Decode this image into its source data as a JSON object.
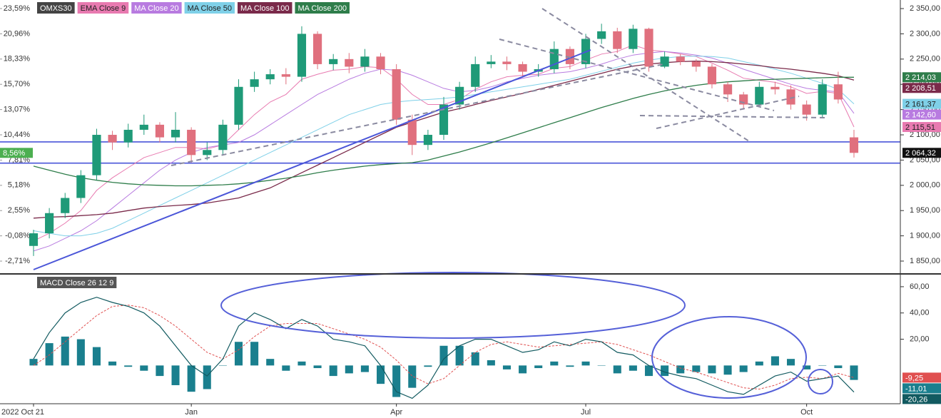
{
  "chart_data": [
    {
      "type": "candlestick",
      "name": "OMXS30",
      "categories": [
        "2022 Oct 21",
        null,
        null,
        null,
        null,
        null,
        null,
        null,
        null,
        null,
        "Jan",
        null,
        null,
        null,
        null,
        null,
        null,
        null,
        null,
        null,
        null,
        null,
        null,
        "Apr",
        null,
        null,
        null,
        null,
        null,
        null,
        null,
        null,
        null,
        null,
        null,
        "Jul",
        null,
        null,
        null,
        null,
        null,
        null,
        null,
        null,
        null,
        null,
        null,
        null,
        null,
        "Oct",
        null,
        null,
        null
      ],
      "open": [
        1880,
        1905,
        1945,
        1975,
        2020,
        2100,
        2085,
        2110,
        2120,
        2095,
        2110,
        2060,
        2070,
        2120,
        2195,
        2210,
        2220,
        2215,
        2300,
        2240,
        2250,
        2235,
        2255,
        2230,
        2130,
        2080,
        2100,
        2160,
        2195,
        2240,
        2245,
        2240,
        2225,
        2230,
        2270,
        2240,
        2290,
        2305,
        2270,
        2310,
        2235,
        2255,
        2245,
        2235,
        2200,
        2180,
        2160,
        2195,
        2190,
        2160,
        2140,
        2200,
        2095
      ],
      "high": [
        1912,
        1955,
        1985,
        2030,
        2112,
        2108,
        2122,
        2140,
        2125,
        2145,
        2115,
        2085,
        2130,
        2210,
        2225,
        2230,
        2232,
        2315,
        2305,
        2260,
        2262,
        2270,
        2262,
        2240,
        2140,
        2110,
        2175,
        2205,
        2255,
        2258,
        2255,
        2245,
        2240,
        2285,
        2275,
        2300,
        2320,
        2312,
        2318,
        2312,
        2265,
        2260,
        2250,
        2240,
        2205,
        2185,
        2205,
        2205,
        2198,
        2168,
        2210,
        2225,
        2110
      ],
      "low": [
        1860,
        1895,
        1935,
        1965,
        2010,
        2070,
        2075,
        2100,
        2085,
        2085,
        2045,
        2050,
        2060,
        2110,
        2185,
        2200,
        2200,
        2205,
        2230,
        2228,
        2222,
        2225,
        2220,
        2120,
        2060,
        2070,
        2090,
        2150,
        2185,
        2232,
        2228,
        2215,
        2215,
        2222,
        2230,
        2232,
        2280,
        2262,
        2262,
        2225,
        2232,
        2238,
        2225,
        2192,
        2165,
        2150,
        2155,
        2180,
        2150,
        2128,
        2135,
        2162,
        2055
      ],
      "close": [
        1905,
        1945,
        1975,
        2020,
        2100,
        2085,
        2110,
        2120,
        2095,
        2110,
        2060,
        2070,
        2120,
        2195,
        2210,
        2220,
        2215,
        2300,
        2240,
        2250,
        2235,
        2255,
        2230,
        2130,
        2080,
        2100,
        2160,
        2195,
        2240,
        2245,
        2240,
        2225,
        2230,
        2270,
        2240,
        2290,
        2305,
        2270,
        2310,
        2235,
        2255,
        2245,
        2235,
        2200,
        2180,
        2160,
        2195,
        2190,
        2160,
        2140,
        2200,
        2170,
        2064.32
      ],
      "close_label": "2 064,32",
      "up_color": "#1f9a78",
      "down_color": "#e0707e",
      "name_color": "#444444",
      "ylim": [
        1826,
        2367
      ],
      "yticks": [
        {
          "value": 2350,
          "label": "2 350,00"
        },
        {
          "value": 2300,
          "label": "2 300,00"
        },
        {
          "value": 2250,
          "label": "2 250,00"
        },
        {
          "value": 2200,
          "label": "2 200,00"
        },
        {
          "value": 2150,
          "label": "2 150,00"
        },
        {
          "value": 2100,
          "label": "2 100,00"
        },
        {
          "value": 2050,
          "label": "2 050,00"
        },
        {
          "value": 2000,
          "label": "2 000,00"
        },
        {
          "value": 1950,
          "label": "1 950,00"
        },
        {
          "value": 1900,
          "label": "1 900,00"
        },
        {
          "value": 1850,
          "label": "1 850,00"
        }
      ],
      "y2lim": [
        -3.97,
        24.48
      ],
      "y2ticks": [
        {
          "value": 23.59,
          "label": "23,59%"
        },
        {
          "value": 20.96,
          "label": "20,96%"
        },
        {
          "value": 18.33,
          "label": "18,33%"
        },
        {
          "value": 15.7,
          "label": "15,70%"
        },
        {
          "value": 13.07,
          "label": "13,07%"
        },
        {
          "value": 10.44,
          "label": "10,44%"
        },
        {
          "value": 7.81,
          "label": "7,81%"
        },
        {
          "value": 5.18,
          "label": "5,18%"
        },
        {
          "value": 2.55,
          "label": "2,55%"
        },
        {
          "value": -0.08,
          "label": "-0,08%"
        },
        {
          "value": -2.71,
          "label": "-2,71%"
        }
      ],
      "y2_last": {
        "value": 8.56,
        "label": "8,56%",
        "color": "#4caf50"
      },
      "hlines": [
        2086,
        2044
      ],
      "hline_color": "#4a55d8",
      "series": [
        {
          "name": "EMA Close 9",
          "color": "#e87ab0",
          "last_label": "2 115,51",
          "values": [
            1890,
            1905,
            1925,
            1950,
            1990,
            2015,
            2035,
            2055,
            2065,
            2075,
            2075,
            2072,
            2080,
            2110,
            2140,
            2165,
            2180,
            2210,
            2220,
            2228,
            2230,
            2235,
            2233,
            2210,
            2180,
            2160,
            2160,
            2170,
            2190,
            2205,
            2215,
            2218,
            2220,
            2232,
            2235,
            2248,
            2260,
            2265,
            2278,
            2268,
            2265,
            2260,
            2255,
            2242,
            2228,
            2212,
            2208,
            2204,
            2195,
            2182,
            2186,
            2182,
            2115.51
          ]
        },
        {
          "name": "MA Close 20",
          "color": "#b87be0",
          "last_label": "2 142,60",
          "values": [
            1870,
            1880,
            1895,
            1910,
            1930,
            1955,
            1980,
            2005,
            2030,
            2050,
            2065,
            2075,
            2080,
            2085,
            2100,
            2120,
            2140,
            2160,
            2180,
            2195,
            2210,
            2222,
            2230,
            2228,
            2218,
            2205,
            2192,
            2185,
            2188,
            2195,
            2205,
            2212,
            2218,
            2222,
            2225,
            2232,
            2240,
            2250,
            2258,
            2262,
            2265,
            2262,
            2258,
            2252,
            2242,
            2230,
            2220,
            2210,
            2200,
            2192,
            2188,
            2185,
            2142.6
          ]
        },
        {
          "name": "MA Close 50",
          "color": "#7fd0e8",
          "last_label": "2 161,37",
          "values": [
            1910,
            1905,
            1900,
            1900,
            1905,
            1915,
            1930,
            1945,
            1960,
            1975,
            1990,
            2005,
            2020,
            2035,
            2050,
            2065,
            2080,
            2095,
            2110,
            2125,
            2140,
            2150,
            2160,
            2165,
            2168,
            2170,
            2172,
            2175,
            2180,
            2185,
            2190,
            2195,
            2200,
            2205,
            2210,
            2218,
            2226,
            2234,
            2242,
            2248,
            2252,
            2255,
            2256,
            2255,
            2252,
            2245,
            2238,
            2230,
            2222,
            2212,
            2202,
            2190,
            2161.37
          ]
        },
        {
          "name": "MA Close 100",
          "color": "#7a2a4a",
          "last_label": "2 208,51",
          "values": [
            1935,
            1937,
            1938,
            1940,
            1942,
            1945,
            1950,
            1955,
            1958,
            1960,
            1962,
            1965,
            1970,
            1975,
            1985,
            1995,
            2010,
            2025,
            2040,
            2055,
            2070,
            2085,
            2100,
            2115,
            2125,
            2135,
            2145,
            2152,
            2160,
            2168,
            2175,
            2182,
            2190,
            2198,
            2206,
            2214,
            2222,
            2230,
            2236,
            2240,
            2243,
            2245,
            2246,
            2245,
            2243,
            2240,
            2237,
            2233,
            2230,
            2226,
            2222,
            2217,
            2208.51
          ]
        },
        {
          "name": "MA Close 200",
          "color": "#2e7d4a",
          "last_label": "2 214,03",
          "values": [
            2038,
            2030,
            2022,
            2015,
            2010,
            2006,
            2003,
            2001,
            2000,
            1999,
            1999,
            2000,
            2001,
            2003,
            2006,
            2010,
            2014,
            2019,
            2025,
            2030,
            2034,
            2038,
            2041,
            2043,
            2045,
            2050,
            2058,
            2066,
            2075,
            2084,
            2094,
            2104,
            2114,
            2124,
            2134,
            2144,
            2154,
            2163,
            2172,
            2180,
            2187,
            2193,
            2198,
            2202,
            2205,
            2207,
            2209,
            2210,
            2211,
            2212,
            2213,
            2214,
            2214.03
          ]
        }
      ]
    },
    {
      "type": "macd",
      "title": "MACD Close 26 12 9",
      "ylim": [
        -28.6,
        69.2
      ],
      "yticks": [
        {
          "value": 60,
          "label": "60,00"
        },
        {
          "value": 40,
          "label": "40,00"
        },
        {
          "value": 20,
          "label": "20,00"
        }
      ],
      "macd": {
        "color": "#125a60",
        "last_label": "-20,26",
        "values": [
          5,
          25,
          40,
          48,
          52,
          48,
          45,
          40,
          30,
          15,
          0,
          -8,
          5,
          30,
          40,
          35,
          28,
          35,
          30,
          20,
          18,
          15,
          0,
          -20,
          -25,
          -15,
          5,
          15,
          20,
          20,
          15,
          10,
          12,
          18,
          15,
          20,
          18,
          10,
          8,
          0,
          -5,
          -8,
          -10,
          -15,
          -20,
          -22,
          -15,
          -8,
          -5,
          -12,
          -10,
          -8,
          -20.26
        ]
      },
      "signal": {
        "color": "#e05050",
        "last_label": "-9,25",
        "values": [
          0,
          8,
          18,
          28,
          38,
          45,
          46,
          44,
          38,
          30,
          20,
          10,
          5,
          12,
          22,
          30,
          32,
          32,
          32,
          28,
          24,
          20,
          14,
          4,
          -8,
          -14,
          -10,
          0,
          10,
          16,
          18,
          16,
          14,
          15,
          16,
          17,
          18,
          16,
          12,
          8,
          3,
          -2,
          -5,
          -9,
          -13,
          -17,
          -18,
          -15,
          -10,
          -9,
          -10,
          -6,
          -9.25
        ]
      },
      "histogram": {
        "color": "#1a7f8e",
        "last_label": "-11,01",
        "values": [
          5,
          17,
          22,
          20,
          14,
          3,
          -1,
          -4,
          -8,
          -15,
          -20,
          -18,
          0,
          18,
          18,
          5,
          -4,
          3,
          -2,
          -8,
          -6,
          -5,
          -14,
          -24,
          -17,
          -1,
          15,
          15,
          10,
          4,
          -3,
          -6,
          -2,
          3,
          -1,
          3,
          0,
          -6,
          -4,
          -8,
          -8,
          -6,
          -5,
          -6,
          -7,
          -5,
          3,
          7,
          5,
          -3,
          0,
          -2,
          -11.01
        ]
      }
    }
  ]
}
